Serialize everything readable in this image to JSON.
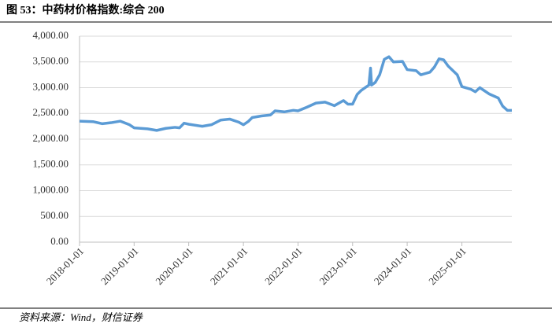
{
  "chart_data": {
    "type": "line",
    "title": "图 53：中药材价格指数:综合 200",
    "source": "资料来源：Wind，财信证券",
    "x": [
      "2018-01-01",
      "2018-04-01",
      "2018-06-01",
      "2018-08-01",
      "2018-10-01",
      "2018-12-01",
      "2019-01-01",
      "2019-04-01",
      "2019-06-01",
      "2019-08-01",
      "2019-10-01",
      "2019-11-01",
      "2019-12-01",
      "2020-01-01",
      "2020-04-01",
      "2020-06-01",
      "2020-08-01",
      "2020-10-01",
      "2020-12-01",
      "2021-01-01",
      "2021-02-01",
      "2021-03-01",
      "2021-05-01",
      "2021-07-01",
      "2021-08-01",
      "2021-10-01",
      "2021-12-01",
      "2022-01-01",
      "2022-03-01",
      "2022-05-01",
      "2022-07-01",
      "2022-09-01",
      "2022-11-01",
      "2022-12-01",
      "2023-01-01",
      "2023-02-01",
      "2023-03-01",
      "2023-04-20",
      "2023-05-01",
      "2023-05-08",
      "2023-06-01",
      "2023-07-01",
      "2023-08-01",
      "2023-09-01",
      "2023-10-01",
      "2023-12-01",
      "2024-01-01",
      "2024-03-01",
      "2024-04-01",
      "2024-06-01",
      "2024-07-01",
      "2024-08-01",
      "2024-09-01",
      "2024-10-01",
      "2024-12-01",
      "2025-01-01",
      "2025-03-01",
      "2025-04-01",
      "2025-05-01",
      "2025-07-01",
      "2025-09-01",
      "2025-10-01",
      "2025-11-01",
      "2025-12-01"
    ],
    "series": [
      {
        "name": "中药材价格指数:综合 200",
        "color": "#5b9bd5",
        "values": [
          2350,
          2340,
          2300,
          2320,
          2350,
          2280,
          2220,
          2200,
          2170,
          2210,
          2230,
          2220,
          2310,
          2290,
          2250,
          2280,
          2370,
          2390,
          2330,
          2280,
          2340,
          2420,
          2450,
          2470,
          2550,
          2530,
          2560,
          2550,
          2620,
          2700,
          2720,
          2650,
          2750,
          2680,
          2680,
          2870,
          2950,
          3050,
          3380,
          3050,
          3100,
          3250,
          3550,
          3600,
          3500,
          3510,
          3350,
          3330,
          3250,
          3300,
          3400,
          3560,
          3540,
          3420,
          3250,
          3020,
          2970,
          2920,
          3000,
          2880,
          2800,
          2640,
          2560,
          2560
        ]
      }
    ],
    "xlim": [
      "2018-01-01",
      "2025-12-01"
    ],
    "xticks": [
      "2018-01-01",
      "2019-01-01",
      "2020-01-01",
      "2021-01-01",
      "2022-01-01",
      "2023-01-01",
      "2024-01-01",
      "2025-01-01"
    ],
    "ylim": [
      0,
      4000
    ],
    "yticks": [
      {
        "value": 0,
        "label": "0.00"
      },
      {
        "value": 500,
        "label": "500.00"
      },
      {
        "value": 1000,
        "label": "1,000.00"
      },
      {
        "value": 1500,
        "label": "1,500.00"
      },
      {
        "value": 2000,
        "label": "2,000.00"
      },
      {
        "value": 2500,
        "label": "2,500.00"
      },
      {
        "value": 3000,
        "label": "3,000.00"
      },
      {
        "value": 3500,
        "label": "3,500.00"
      },
      {
        "value": 4000,
        "label": "4,000.00"
      }
    ],
    "grid": true
  }
}
